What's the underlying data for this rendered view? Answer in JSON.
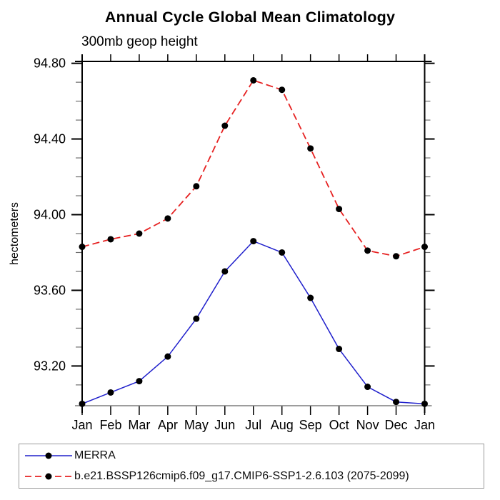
{
  "title": "Annual Cycle Global Mean Climatology",
  "subtitle": "300mb geop height",
  "chart_data": {
    "type": "line",
    "x_categories": [
      "Jan",
      "Feb",
      "Mar",
      "Apr",
      "May",
      "Jun",
      "Jul",
      "Aug",
      "Sep",
      "Oct",
      "Nov",
      "Dec",
      "Jan"
    ],
    "xlabel": "",
    "ylabel": "hectometers",
    "ylim": [
      92.99,
      94.81
    ],
    "yticks_major": [
      93.2,
      93.6,
      94.0,
      94.4,
      94.8
    ],
    "ytick_minor_step": 0.1,
    "ytick_minor_range": [
      93.1,
      94.8
    ],
    "grid": false,
    "legend_position": "bottom-outside",
    "axis_color": "#000000",
    "bottom_axis_color": "#7d7d7d",
    "minor_tick_color": "#6e6e6e",
    "marker_shape": "filled-circle",
    "series": [
      {
        "name": "MERRA",
        "color": "#2121cc",
        "line_style": "solid",
        "marker_color": "#000000",
        "values": [
          93.0,
          93.06,
          93.12,
          93.25,
          93.45,
          93.7,
          93.86,
          93.8,
          93.56,
          93.29,
          93.09,
          93.01,
          93.0
        ]
      },
      {
        "name": "b.e21.BSSP126cmip6.f09_g17.CMIP6-SSP1-2.6.103 (2075-2099)",
        "color": "#e62222",
        "line_style": "dashed",
        "marker_color": "#000000",
        "values": [
          93.83,
          93.87,
          93.9,
          93.98,
          94.15,
          94.47,
          94.71,
          94.66,
          94.35,
          94.03,
          93.81,
          93.78,
          93.83
        ]
      }
    ]
  }
}
